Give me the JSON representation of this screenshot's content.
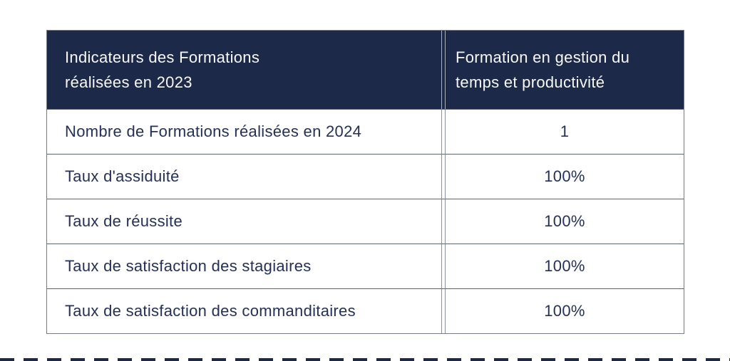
{
  "table": {
    "header": {
      "col1": "Indicateurs des Formations réalisées en 2023",
      "col2": "Formation en gestion du temps et productivité"
    },
    "rows": [
      {
        "label": "Nombre de Formations réalisées en 2024",
        "value": "1"
      },
      {
        "label": "Taux d'assiduité",
        "value": "100%"
      },
      {
        "label": "Taux de réussite",
        "value": "100%"
      },
      {
        "label": "Taux de satisfaction des stagiaires",
        "value": "100%"
      },
      {
        "label": "Taux de satisfaction des commanditaires",
        "value": "100%"
      }
    ],
    "colors": {
      "header_background": "#1d2949",
      "header_text": "#f8f8f8",
      "body_text": "#243055",
      "border": "#757a84",
      "page_background": "#ffffff"
    }
  },
  "chart_data": {
    "type": "table",
    "columns": [
      "Indicateurs des Formations réalisées en 2023",
      "Formation en gestion du temps et productivité"
    ],
    "rows": [
      [
        "Nombre de Formations réalisées en 2024",
        "1"
      ],
      [
        "Taux d'assiduité",
        "100%"
      ],
      [
        "Taux de réussite",
        "100%"
      ],
      [
        "Taux de satisfaction des stagiaires",
        "100%"
      ],
      [
        "Taux de satisfaction des commanditaires",
        "100%"
      ]
    ]
  }
}
